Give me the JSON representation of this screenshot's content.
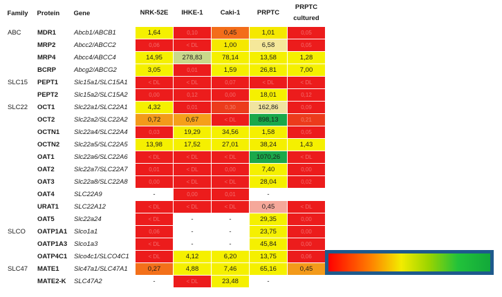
{
  "headers": {
    "family": "Family",
    "protein": "Protein",
    "gene": "Gene",
    "cols": [
      "NRK-52E",
      "IHKE-1",
      "Caki-1",
      "PRPTC",
      "PRPTC\ncultured"
    ]
  },
  "rows": [
    {
      "family": "ABC",
      "protein": "MDR1",
      "gene": "Abcb1/ABCB1",
      "values": [
        "1,64",
        "0,10",
        "0,45",
        "1,01",
        "0,05"
      ],
      "colors": [
        "#f5f000",
        "#ec1c1c",
        "#f36d1a",
        "#f5e800",
        "#ec1c1c"
      ]
    },
    {
      "family": "",
      "protein": "MRP2",
      "gene": "Abcc2/ABCC2",
      "values": [
        "0,06",
        "< DL",
        "1,00",
        "6,58",
        "0,05"
      ],
      "colors": [
        "#ec1c1c",
        "#ec1c1c",
        "#f5e800",
        "#f5e89a",
        "#ec1c1c"
      ]
    },
    {
      "family": "",
      "protein": "MRP4",
      "gene": "Abcc4/ABCC4",
      "values": [
        "14,95",
        "278,83",
        "78,14",
        "13,58",
        "1,28"
      ],
      "colors": [
        "#f5f000",
        "#c9d88a",
        "#f5f000",
        "#f5f000",
        "#f5f000"
      ]
    },
    {
      "family": "",
      "protein": "BCRP",
      "gene": "Abcg2/ABCG2",
      "values": [
        "3,05",
        "0,01",
        "1,59",
        "26,81",
        "7,00"
      ],
      "colors": [
        "#f5f000",
        "#ec1c1c",
        "#f5f000",
        "#f5f000",
        "#f5f000"
      ]
    },
    {
      "family": "SLC15",
      "protein": "PEPT1",
      "gene": "Slc15a1/SLC15A1",
      "values": [
        "< DL",
        "< DL",
        "0,07",
        "< DL",
        "< DL"
      ],
      "colors": [
        "#ec1c1c",
        "#ec1c1c",
        "#ec1c1c",
        "#ec1c1c",
        "#ec1c1c"
      ]
    },
    {
      "family": "",
      "protein": "PEPT2",
      "gene": "Slc15a2/SLC15A2",
      "values": [
        "0,00",
        "0,12",
        "0,00",
        "18,01",
        "0,12"
      ],
      "colors": [
        "#ec1c1c",
        "#ec1c1c",
        "#ec1c1c",
        "#f5f000",
        "#ec1c1c"
      ]
    },
    {
      "family": "SLC22",
      "protein": "OCT1",
      "gene": "Slc22a1/SLC22A1",
      "values": [
        "4,32",
        "0,01",
        "0,30",
        "162,86",
        "0,09"
      ],
      "colors": [
        "#f5f000",
        "#ec1c1c",
        "#ec3b1c",
        "#f0e4a0",
        "#ec1c1c"
      ]
    },
    {
      "family": "",
      "protein": "OCT2",
      "gene": "Slc22a2/SLC22A2",
      "values": [
        "0,72",
        "0,67",
        "< DL",
        "898,13",
        "0,21"
      ],
      "colors": [
        "#f39a1a",
        "#f5a01a",
        "#ec1c1c",
        "#1aa84a",
        "#ec3b1c"
      ]
    },
    {
      "family": "",
      "protein": "OCTN1",
      "gene": "Slc22a4/SLC22A4",
      "values": [
        "0,03",
        "19,29",
        "34,56",
        "1,58",
        "0,05"
      ],
      "colors": [
        "#ec1c1c",
        "#f5f000",
        "#f5f000",
        "#f5f000",
        "#ec1c1c"
      ]
    },
    {
      "family": "",
      "protein": "OCTN2",
      "gene": "Slc22a5/SLC22A5",
      "values": [
        "13,98",
        "17,52",
        "27,01",
        "38,24",
        "1,43"
      ],
      "colors": [
        "#f5f000",
        "#f5f000",
        "#f5f000",
        "#f5f000",
        "#f5f000"
      ]
    },
    {
      "family": "",
      "protein": "OAT1",
      "gene": "Slc22a6/SLC22A6",
      "values": [
        "< DL",
        "< DL",
        "< DL",
        "1070,26",
        "< DL"
      ],
      "colors": [
        "#ec1c1c",
        "#ec1c1c",
        "#ec1c1c",
        "#1aa84a",
        "#ec1c1c"
      ]
    },
    {
      "family": "",
      "protein": "OAT2",
      "gene": "Slc22a7/SLC22A7",
      "values": [
        "0,01",
        "< DL",
        "0,00",
        "7,40",
        "0,00"
      ],
      "colors": [
        "#ec1c1c",
        "#ec1c1c",
        "#ec1c1c",
        "#f5f000",
        "#ec1c1c"
      ]
    },
    {
      "family": "",
      "protein": "OAT3",
      "gene": "Slc22a8/SLC22A8",
      "values": [
        "0,00",
        "< DL",
        "< DL",
        "28,04",
        "0,02"
      ],
      "colors": [
        "#ec1c1c",
        "#ec1c1c",
        "#ec1c1c",
        "#f5f000",
        "#ec1c1c"
      ]
    },
    {
      "family": "",
      "protein": "OAT4",
      "gene": "SLC22A9",
      "values": [
        "-",
        "0,00",
        "0,01",
        "-",
        ""
      ],
      "colors": [
        "",
        "#ec1c1c",
        "#ec1c1c",
        "",
        ""
      ]
    },
    {
      "family": "",
      "protein": "URAT1",
      "gene": "SLC22A12",
      "values": [
        "< DL",
        "< DL",
        "< DL",
        "0,45",
        "< DL"
      ],
      "colors": [
        "#ec1c1c",
        "#ec1c1c",
        "#ec1c1c",
        "#f5a89a",
        "#ec1c1c"
      ]
    },
    {
      "family": "",
      "protein": "OAT5",
      "gene": "Slc22a24",
      "values": [
        "< DL",
        "-",
        "-",
        "29,35",
        "0,00"
      ],
      "colors": [
        "#ec1c1c",
        "",
        "",
        "#f5f000",
        "#ec1c1c"
      ]
    },
    {
      "family": "SLCO",
      "protein": "OATP1A1",
      "gene": "Slco1a1",
      "values": [
        "0,06",
        "-",
        "-",
        "23,75",
        "0,00"
      ],
      "colors": [
        "#ec1c1c",
        "",
        "",
        "#f5f000",
        "#ec1c1c"
      ]
    },
    {
      "family": "",
      "protein": "OATP1A3",
      "gene": "Slco1a3",
      "values": [
        "< DL",
        "-",
        "-",
        "45,84",
        "0,00"
      ],
      "colors": [
        "#ec1c1c",
        "",
        "",
        "#f5f000",
        "#ec1c1c"
      ]
    },
    {
      "family": "",
      "protein": "OATP4C1",
      "gene": "Slco4c1/SLCO4C1",
      "values": [
        "< DL",
        "4,12",
        "6,20",
        "13,75",
        "0,06"
      ],
      "colors": [
        "#ec1c1c",
        "#f5f000",
        "#f5f000",
        "#f5f000",
        "#ec1c1c"
      ]
    },
    {
      "family": "SLC47",
      "protein": "MATE1",
      "gene": "Slc47a1/SLC47A1",
      "values": [
        "0,27",
        "4,88",
        "7,46",
        "65,16",
        "0,45"
      ],
      "colors": [
        "#f3701a",
        "#f5f000",
        "#f5f000",
        "#f5f000",
        "#f39a1a"
      ]
    },
    {
      "family": "",
      "protein": "MATE2-K",
      "gene": "SLC47A2",
      "values": [
        "-",
        "< DL",
        "23,48",
        "-",
        ""
      ],
      "colors": [
        "",
        "#ec1c1c",
        "#f5f000",
        "",
        ""
      ]
    }
  ],
  "legend": {
    "gradient": [
      "#ff0000",
      "#ff7a00",
      "#f2ec00",
      "#9bd400",
      "#22c23a",
      "#12a83a"
    ],
    "frame": "#1e5a8c"
  }
}
